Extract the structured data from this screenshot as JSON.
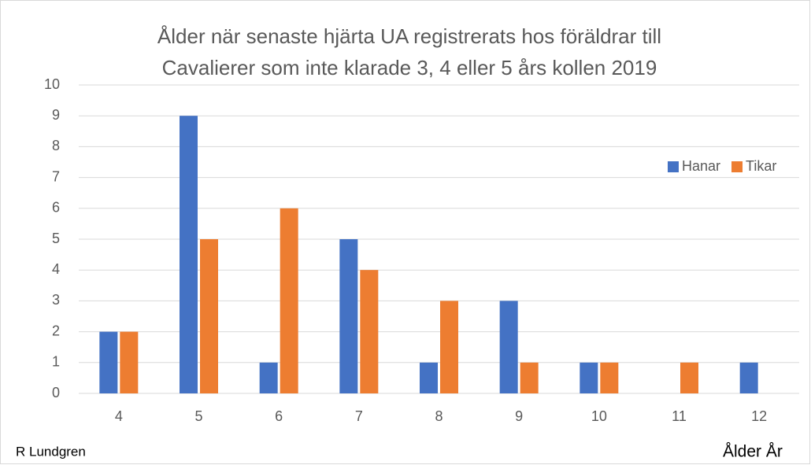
{
  "chart_data": {
    "type": "bar",
    "title": [
      "Ålder när senaste hjärta UA registrerats hos föräldrar till",
      "Cavalierer som inte klarade 3, 4 eller 5 års kollen 2019"
    ],
    "categories": [
      "4",
      "5",
      "6",
      "7",
      "8",
      "9",
      "10",
      "11",
      "12"
    ],
    "series": [
      {
        "name": "Hanar",
        "color": "#4472c4",
        "values": [
          2,
          9,
          1,
          5,
          1,
          3,
          1,
          0,
          1
        ]
      },
      {
        "name": "Tikar",
        "color": "#ed7d31",
        "values": [
          2,
          5,
          6,
          4,
          3,
          1,
          1,
          1,
          0
        ]
      }
    ],
    "ylim": [
      0,
      10
    ],
    "yticks": [
      0,
      1,
      2,
      3,
      4,
      5,
      6,
      7,
      8,
      9,
      10
    ],
    "grid": true,
    "legend": "upper right",
    "xlabel": "Ålder År",
    "annotations": [
      "R Lundgren"
    ]
  }
}
